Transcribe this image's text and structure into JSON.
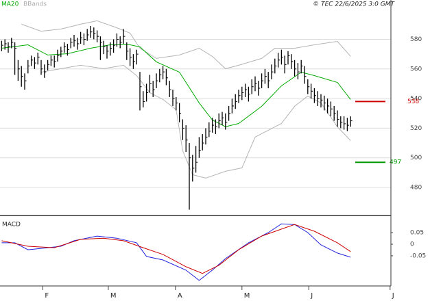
{
  "chart_data": [
    {
      "type": "ohlc",
      "legend": [
        "MA20",
        "BBands"
      ],
      "source": "© TEC 22/6/2025 3:0 GMT",
      "xlim": [
        -0.5,
        118.25
      ],
      "ylim": [
        462,
        601
      ],
      "yticks": [
        480,
        500,
        520,
        540,
        560,
        580
      ],
      "grid": true,
      "color": "#000000",
      "close": [
        576,
        577,
        575,
        578,
        574,
        560,
        555,
        552,
        562,
        566,
        564,
        568,
        560,
        558,
        563,
        566,
        565,
        569,
        572,
        575,
        573,
        578,
        579,
        577,
        581,
        580,
        583,
        585,
        584,
        582,
        578,
        575,
        572,
        574,
        576,
        580,
        578,
        582,
        572,
        568,
        565,
        570,
        548,
        538,
        544,
        550,
        546,
        552,
        556,
        558,
        554,
        546,
        540,
        537,
        530,
        520,
        512,
        500,
        493,
        497,
        505,
        510,
        514,
        518,
        522,
        521,
        525,
        527,
        524,
        530,
        535,
        538,
        542,
        544,
        546,
        543,
        548,
        550,
        547,
        552,
        555,
        552,
        558,
        562,
        566,
        568,
        563,
        569,
        565,
        560,
        558,
        562,
        555,
        548,
        545,
        542,
        540,
        539,
        537,
        535,
        533,
        530,
        526,
        524,
        523,
        522,
        525
      ],
      "high": [
        579,
        580,
        578,
        581,
        578,
        566,
        562,
        557,
        566,
        569,
        568,
        571,
        566,
        563,
        566,
        569,
        569,
        573,
        575,
        578,
        577,
        581,
        583,
        581,
        585,
        584,
        587,
        589,
        588,
        586,
        582,
        579,
        576,
        578,
        580,
        584,
        582,
        587,
        578,
        574,
        570,
        573,
        558,
        545,
        550,
        556,
        552,
        557,
        560,
        562,
        560,
        552,
        546,
        541,
        537,
        526,
        522,
        510,
        502,
        508,
        514,
        516,
        520,
        524,
        527,
        526,
        530,
        531,
        530,
        535,
        540,
        543,
        546,
        548,
        550,
        548,
        553,
        555,
        552,
        557,
        560,
        558,
        563,
        567,
        571,
        573,
        569,
        572,
        570,
        566,
        564,
        566,
        562,
        553,
        550,
        547,
        545,
        543,
        542,
        540,
        538,
        535,
        532,
        528,
        528,
        527,
        528
      ],
      "low": [
        572,
        573,
        571,
        574,
        556,
        552,
        548,
        546,
        557,
        562,
        560,
        563,
        556,
        554,
        559,
        562,
        561,
        565,
        568,
        571,
        569,
        574,
        575,
        573,
        577,
        576,
        579,
        581,
        580,
        578,
        566,
        570,
        567,
        569,
        571,
        575,
        574,
        577,
        566,
        562,
        560,
        563,
        532,
        534,
        538,
        544,
        541,
        547,
        551,
        553,
        549,
        541,
        535,
        532,
        524,
        512,
        504,
        465,
        484,
        490,
        500,
        505,
        509,
        514,
        517,
        516,
        520,
        522,
        519,
        525,
        530,
        533,
        537,
        539,
        541,
        538,
        543,
        545,
        542,
        547,
        550,
        547,
        553,
        557,
        561,
        563,
        557,
        563,
        560,
        555,
        553,
        557,
        550,
        543,
        540,
        537,
        535,
        534,
        532,
        530,
        528,
        525,
        521,
        520,
        519,
        518,
        521
      ],
      "ma": {
        "color": "#00aa00",
        "x": [
          0,
          8,
          14,
          20,
          27,
          33,
          39,
          42,
          47,
          54,
          60,
          64,
          68,
          72,
          79,
          85,
          91,
          95,
          102,
          106
        ],
        "values": [
          574,
          576.3,
          569.4,
          570.3,
          574,
          576.3,
          576.3,
          574.9,
          564.8,
          557.8,
          537.1,
          525.6,
          521,
          523.2,
          534.8,
          548.6,
          557.8,
          555.5,
          550.9,
          539.4
        ]
      },
      "bands": {
        "color": "#b4b4b4",
        "x_upper": [
          6,
          12,
          18,
          24,
          29,
          35,
          39,
          42,
          47,
          54,
          60,
          64,
          68,
          72,
          79,
          83,
          89,
          95,
          102,
          106
        ],
        "upper": [
          590.2,
          585.5,
          586.9,
          590.2,
          592.5,
          587.8,
          584.2,
          574,
          567.1,
          569.4,
          574,
          568.5,
          560.2,
          562.5,
          567.1,
          574,
          574,
          576.3,
          578.6,
          568.5
        ],
        "x_lower": [
          12,
          18,
          24,
          31,
          37,
          41,
          45,
          49,
          53,
          55,
          58,
          62,
          68,
          73,
          77,
          81,
          85,
          89,
          93,
          97,
          102,
          106
        ],
        "lower": [
          557.8,
          560.2,
          562.5,
          560.2,
          562.5,
          555.5,
          544,
          539.4,
          532.5,
          504.8,
          488.6,
          486.3,
          490.9,
          493.2,
          514,
          518.6,
          523.2,
          534.8,
          541.7,
          537.1,
          520.9,
          511.7
        ]
      },
      "levels": [
        {
          "value": 538,
          "color": "#cc0000"
        },
        {
          "value": 497,
          "color": "#009900"
        }
      ]
    },
    {
      "type": "line",
      "title": "MACD",
      "xlim": [
        -0.5,
        118.25
      ],
      "xticks": [
        {
          "value": 12.5,
          "label": "F"
        },
        {
          "value": 32.4,
          "label": "M"
        },
        {
          "value": 52.8,
          "label": "A"
        },
        {
          "value": 73,
          "label": "M"
        },
        {
          "value": 93.3,
          "label": "J"
        },
        {
          "value": 118,
          "label": "J"
        }
      ],
      "ylim": [
        -0.18,
        0.115
      ],
      "yticks": [
        {
          "value": 0.05,
          "label": "0.05"
        },
        0,
        {
          "value": -0.05,
          "label": "-0.05"
        }
      ],
      "series": [
        {
          "color": "#2020dd",
          "x": [
            0,
            4,
            8,
            12,
            18,
            22,
            29,
            35,
            41,
            44,
            49,
            56,
            60,
            64,
            68,
            75,
            81,
            85,
            89,
            93,
            97,
            102,
            106
          ],
          "values": [
            0.006,
            0.006,
            -0.024,
            -0.018,
            -0.009,
            0.015,
            0.035,
            0.026,
            0.006,
            -0.053,
            -0.068,
            -0.112,
            -0.156,
            -0.112,
            -0.062,
            0.006,
            0.05,
            0.088,
            0.085,
            0.05,
            -0.003,
            -0.038,
            -0.056
          ]
        },
        {
          "color": "#cc0000",
          "x": [
            0,
            8,
            16,
            24,
            31,
            37,
            43,
            49,
            56,
            61,
            66,
            72,
            79,
            85,
            89,
            95,
            102,
            106
          ],
          "values": [
            0.015,
            -0.009,
            -0.015,
            0.021,
            0.026,
            0.015,
            -0.015,
            -0.044,
            -0.097,
            -0.126,
            -0.091,
            -0.024,
            0.035,
            0.065,
            0.085,
            0.056,
            0.006,
            -0.032
          ]
        }
      ]
    }
  ]
}
